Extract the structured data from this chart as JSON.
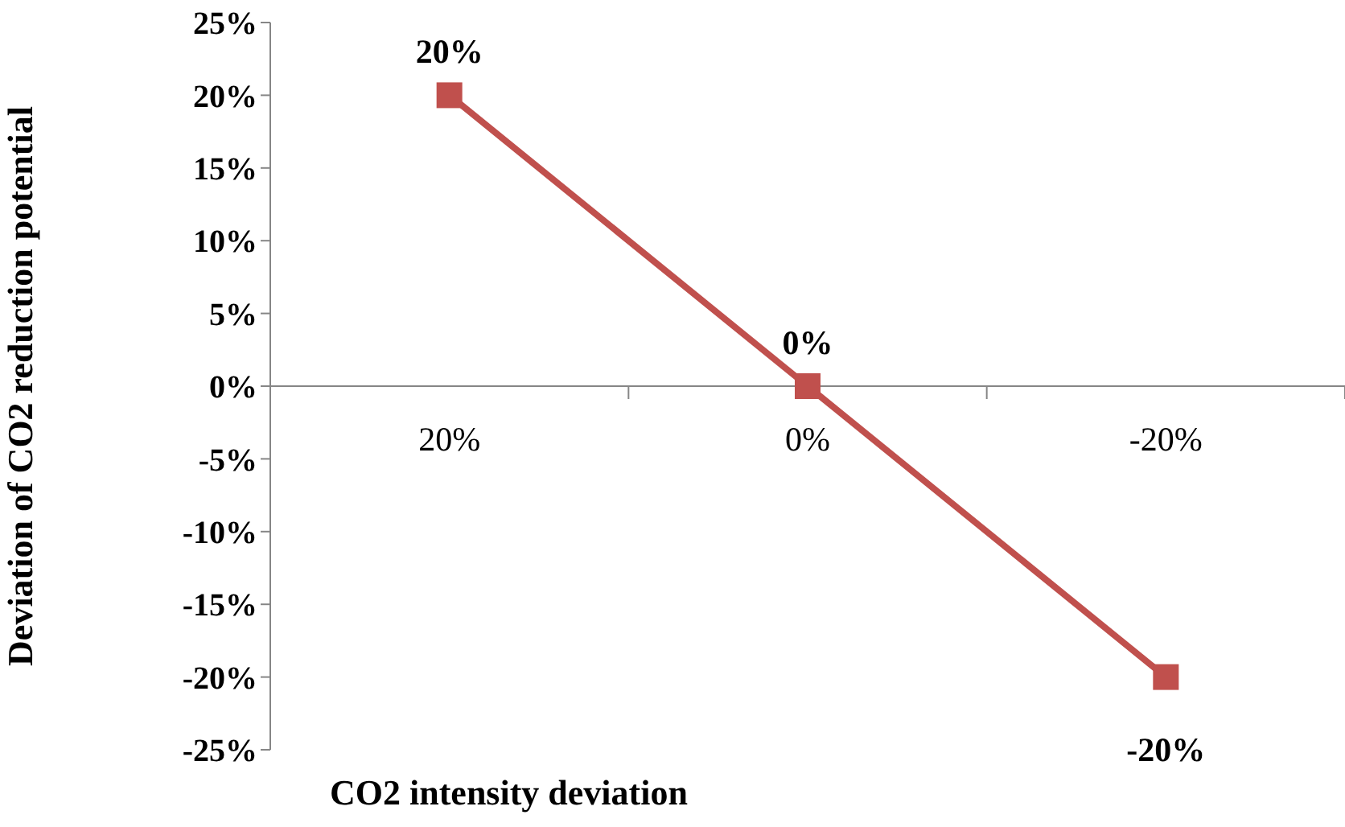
{
  "chart_data": {
    "type": "line",
    "xlabel": "CO2 intensity deviation",
    "ylabel": "Deviation of CO2 reduction potential",
    "categories": [
      "20%",
      "0%",
      "-20%"
    ],
    "series": [
      {
        "color": "#c0504d",
        "values": [
          20,
          0,
          -20
        ],
        "value_labels": [
          "20%",
          "0%",
          "-20%"
        ]
      }
    ],
    "ylim": [
      -25,
      25
    ],
    "yticks": [
      {
        "value": -25,
        "label": "-25%"
      },
      {
        "value": -20,
        "label": "-20%"
      },
      {
        "value": -15,
        "label": "-15%"
      },
      {
        "value": -10,
        "label": "-10%"
      },
      {
        "value": -5,
        "label": "-5%"
      },
      {
        "value": 0,
        "label": "0%"
      },
      {
        "value": 5,
        "label": "5%"
      },
      {
        "value": 10,
        "label": "10%"
      },
      {
        "value": 15,
        "label": "15%"
      },
      {
        "value": 20,
        "label": "20%"
      },
      {
        "value": 25,
        "label": "25%"
      }
    ],
    "marker": "square",
    "grid": false,
    "legend": false
  }
}
